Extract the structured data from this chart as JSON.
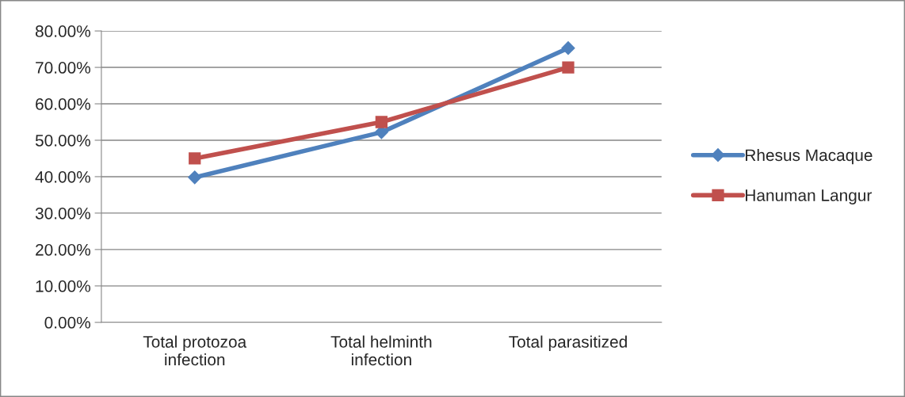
{
  "chart_data": {
    "type": "line",
    "categories": [
      "Total protozoa\ninfection",
      "Total helminth\ninfection",
      "Total parasitized"
    ],
    "series": [
      {
        "name": "Rhesus Macaque",
        "color": "#4f81bd",
        "marker": "diamond",
        "values": [
          39.8,
          52.2,
          75.3
        ]
      },
      {
        "name": "Hanuman Langur",
        "color": "#c0504d",
        "marker": "square",
        "values": [
          45,
          55,
          70
        ]
      }
    ],
    "ylim": [
      0,
      80
    ],
    "yticks": [
      {
        "value": 0,
        "label": "0.00%"
      },
      {
        "value": 10,
        "label": "10.00%"
      },
      {
        "value": 20,
        "label": "20.00%"
      },
      {
        "value": 30,
        "label": "30.00%"
      },
      {
        "value": 40,
        "label": "40.00%"
      },
      {
        "value": 50,
        "label": "50.00%"
      },
      {
        "value": 60,
        "label": "60.00%"
      },
      {
        "value": 70,
        "label": "70.00%"
      },
      {
        "value": 80,
        "label": "80.00%"
      }
    ],
    "grid": "y",
    "legend": "right"
  }
}
